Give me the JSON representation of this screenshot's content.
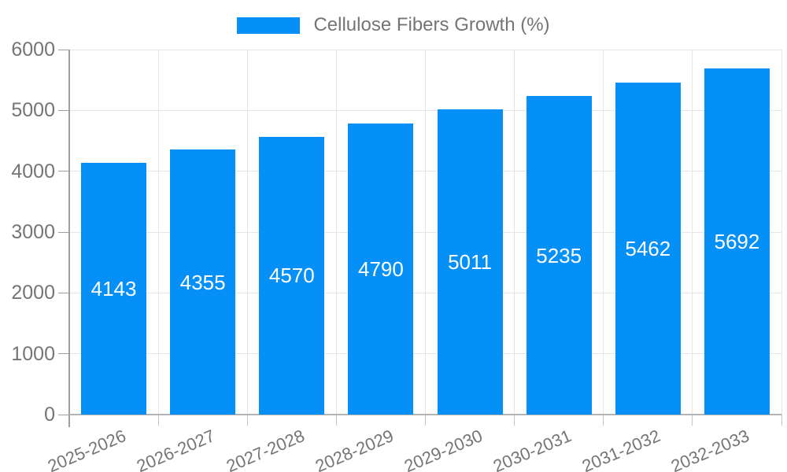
{
  "legend": {
    "label": "Cellulose Fibers Growth (%)"
  },
  "chart_data": {
    "type": "bar",
    "title": "Cellulose Fibers Growth (%)",
    "categories": [
      "2025-2026",
      "2026-2027",
      "2027-2028",
      "2028-2029",
      "2029-2030",
      "2030-2031",
      "2031-2032",
      "2032-2033"
    ],
    "values": [
      4143,
      4355,
      4570,
      4790,
      5011,
      5235,
      5462,
      5692
    ],
    "value_labels": [
      "4143",
      "4355",
      "4570",
      "4790",
      "5011",
      "5235",
      "5462",
      "5692"
    ],
    "xlabel": "",
    "ylabel": "",
    "ylim": [
      0,
      6000
    ],
    "ytick_step": 1000,
    "yticks": [
      0,
      1000,
      2000,
      3000,
      4000,
      5000,
      6000
    ],
    "grid": true,
    "legend_position": "top",
    "bar_color": "#0590f8",
    "value_label_color": "#ffffff",
    "axis_text_color": "#757575",
    "gridline_color": "#e6e6e6",
    "axis_line_color": "#b3b3b3",
    "tick_color": "#c4c4c4"
  }
}
